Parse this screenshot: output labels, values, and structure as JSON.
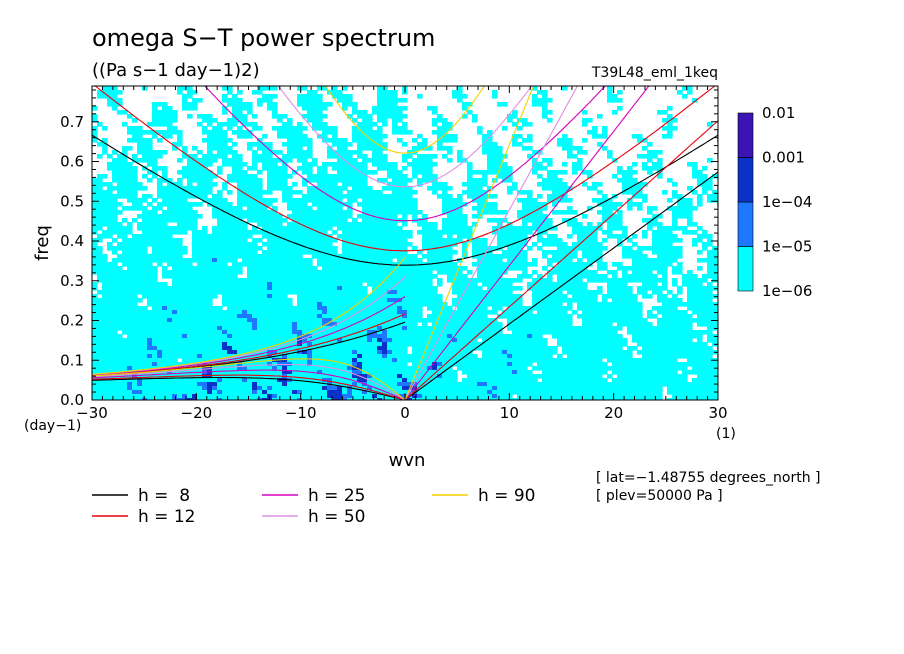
{
  "chart_data": {
    "type": "heatmap",
    "title": "omega S−T power spectrum",
    "subtitle": "((Pa s−1 day−1)2)",
    "experiment": "T39L48_eml_1keq",
    "xlabel": "wvn",
    "ylabel": "freq",
    "x_unit_label": "(1)",
    "y_unit_label": "(day−1)",
    "xlim": [
      -30,
      30
    ],
    "ylim": [
      0,
      0.79
    ],
    "x_ticks": [
      -30,
      -20,
      -10,
      0,
      10,
      20,
      30
    ],
    "x_tick_labels": [
      "−30",
      "−20",
      "−10",
      "0",
      "10",
      "20",
      "30"
    ],
    "y_ticks": [
      0,
      0.1,
      0.2,
      0.3,
      0.4,
      0.5,
      0.6,
      0.7
    ],
    "y_tick_labels": [
      "0.0",
      "0.1",
      "0.2",
      "0.3",
      "0.4",
      "0.5",
      "0.6",
      "0.7"
    ],
    "colorbar": {
      "levels": [
        "1e−06",
        "1e−05",
        "1e−04",
        "0.001",
        "0.01"
      ],
      "colors": [
        "#00ffff",
        "#1e78ff",
        "#0a32c8",
        "#3c14b4"
      ]
    },
    "dispersion_curves": [
      {
        "label": "h =  8",
        "h": 8,
        "color": "#000000"
      },
      {
        "label": "h = 12",
        "h": 12,
        "color": "#e8000b"
      },
      {
        "label": "h = 25",
        "h": 25,
        "color": "#d800b8"
      },
      {
        "label": "h = 50",
        "h": 50,
        "color": "#e090e0"
      },
      {
        "label": "h = 90",
        "h": 90,
        "color": "#f0d000"
      }
    ],
    "info_lines": [
      "[ lat=−1.48755 degrees_north ]",
      "[ plev=50000 Pa ]"
    ]
  }
}
